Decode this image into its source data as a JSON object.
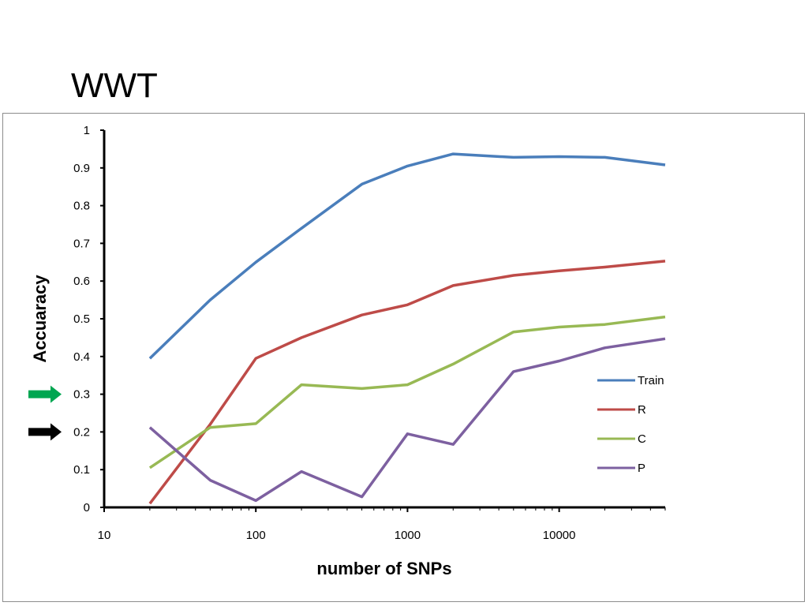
{
  "slide": {
    "title": "WWT"
  },
  "colors": {
    "arrow_green": "#00a651",
    "arrow_black": "#000000"
  },
  "markers": [
    {
      "name": "green-arrow-icon",
      "value": 0.3,
      "color": "#00a651"
    },
    {
      "name": "black-arrow-icon",
      "value": 0.2,
      "color": "#000000"
    }
  ],
  "chart_data": {
    "type": "line",
    "title": "",
    "xlabel": "number of SNPs",
    "ylabel": "Accuaracy",
    "x_scale": "log",
    "xlim": [
      10,
      50000
    ],
    "ylim": [
      0,
      1
    ],
    "x_ticks": [
      10,
      100,
      1000,
      10000
    ],
    "x_tick_labels": [
      "10",
      "100",
      "1000",
      "10000"
    ],
    "y_ticks": [
      0,
      0.1,
      0.2,
      0.3,
      0.4,
      0.5,
      0.6,
      0.7,
      0.8,
      0.9,
      1
    ],
    "y_tick_labels": [
      "0",
      "0.1",
      "0.2",
      "0.3",
      "0.4",
      "0.5",
      "0.6",
      "0.7",
      "0.8",
      "0.9",
      "1"
    ],
    "grid": false,
    "legend_position": "right",
    "x": [
      20,
      50,
      100,
      200,
      500,
      1000,
      2000,
      5000,
      10000,
      20000,
      50000
    ],
    "series": [
      {
        "name": "Train",
        "color": "#4a7ebb",
        "values": [
          0.395,
          0.55,
          0.65,
          0.74,
          0.857,
          0.905,
          0.937,
          0.928,
          0.93,
          0.928,
          0.908
        ]
      },
      {
        "name": "R",
        "color": "#be4b48",
        "values": [
          0.01,
          0.22,
          0.395,
          0.45,
          0.51,
          0.537,
          0.588,
          0.615,
          0.627,
          0.637,
          0.653
        ]
      },
      {
        "name": "C",
        "color": "#98b954",
        "values": [
          0.105,
          0.212,
          0.222,
          0.325,
          0.315,
          0.325,
          0.38,
          0.465,
          0.478,
          0.485,
          0.505
        ]
      },
      {
        "name": "P",
        "color": "#7d60a0",
        "values": [
          0.212,
          0.072,
          0.018,
          0.095,
          0.028,
          0.195,
          0.167,
          0.36,
          0.388,
          0.423,
          0.447
        ]
      }
    ]
  }
}
